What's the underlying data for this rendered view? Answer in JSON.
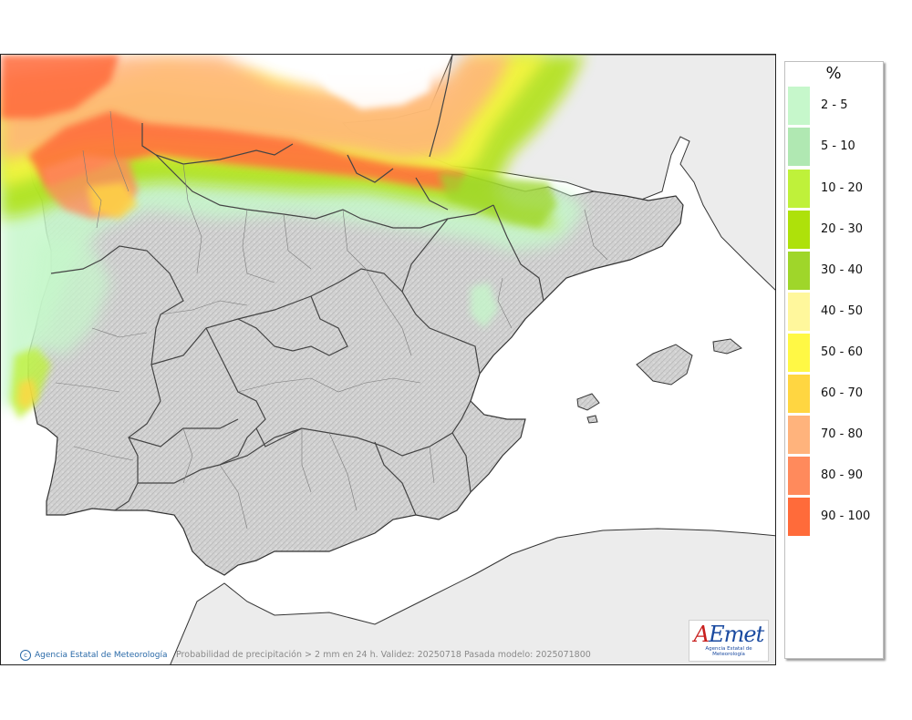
{
  "legend": {
    "title": "%",
    "items": [
      {
        "label": "2 - 5",
        "color": "#c6f7cb"
      },
      {
        "label": "5 - 10",
        "color": "#b0e8b2"
      },
      {
        "label": "10 - 20",
        "color": "#bff13a"
      },
      {
        "label": "20 - 30",
        "color": "#aee10a"
      },
      {
        "label": "30 - 40",
        "color": "#9fd62a"
      },
      {
        "label": "40 - 50",
        "color": "#fff79c"
      },
      {
        "label": "50 - 60",
        "color": "#fff845"
      },
      {
        "label": "60 - 70",
        "color": "#ffd641"
      },
      {
        "label": "70 - 80",
        "color": "#ffb37c"
      },
      {
        "label": "80 - 90",
        "color": "#ff8a5c"
      },
      {
        "label": "90 - 100",
        "color": "#ff6b3a"
      }
    ]
  },
  "footer": {
    "credit": "Agencia Estatal de Meteorología",
    "caption": "Probabilidad de precipitación > 2 mm en 24 h. Validez: 20250718 Pasada modelo: 2025071800"
  },
  "logo": {
    "wordmark_a": "A",
    "wordmark_e": "E",
    "wordmark_rest": "met",
    "subtitle": "Agencia Estatal de Meteorología"
  },
  "map": {
    "sea_color": "#ffffff",
    "land_color": "#d6d6d6",
    "foreign_land_color": "#ececec"
  }
}
